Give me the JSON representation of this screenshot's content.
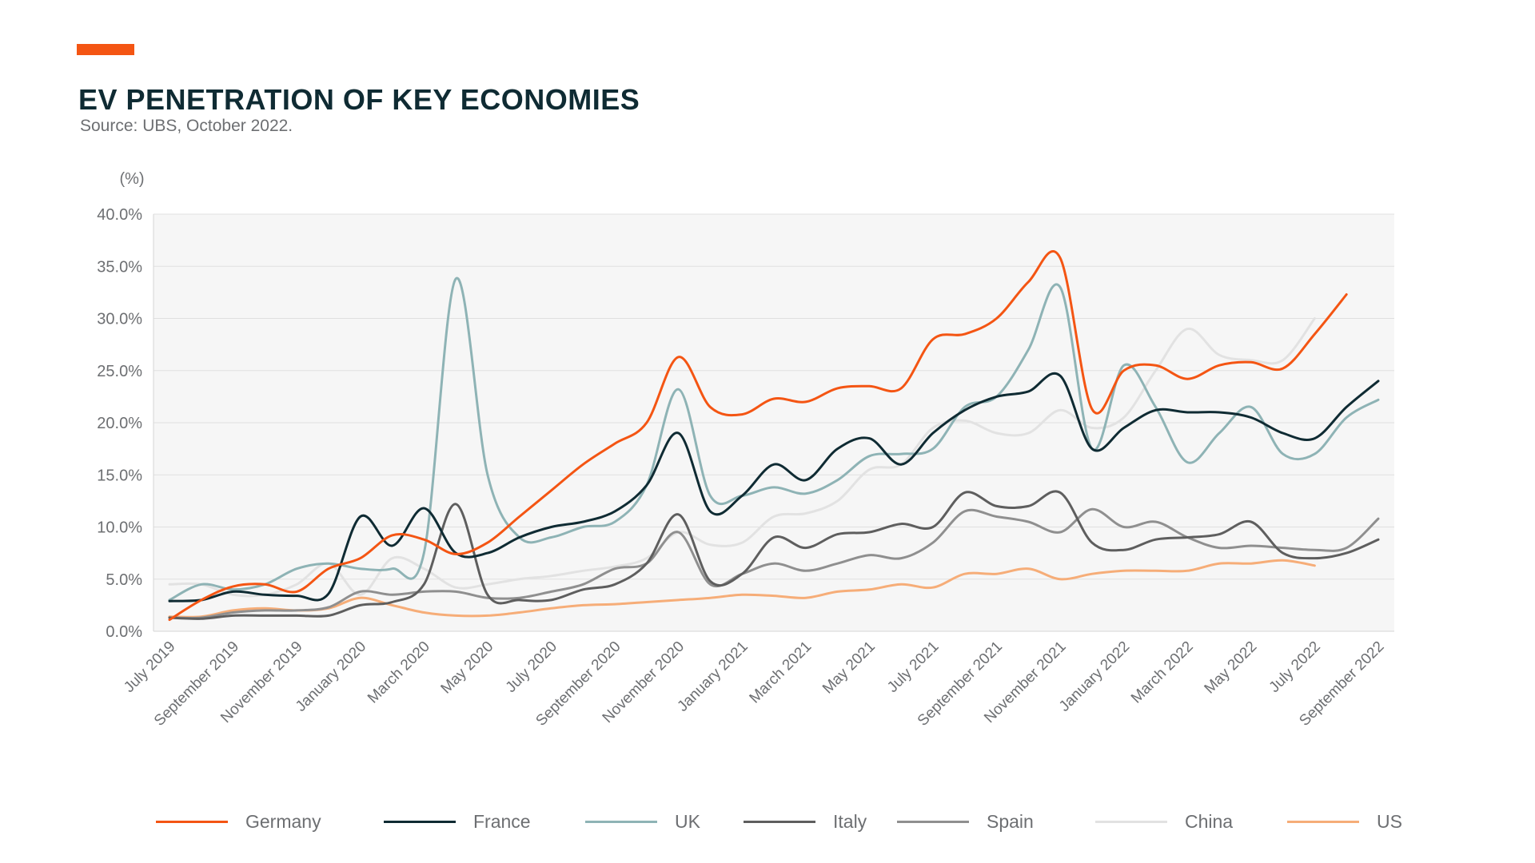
{
  "header": {
    "title": "EV PENETRATION OF KEY ECONOMIES",
    "source": "Source: UBS, October 2022."
  },
  "chart_data": {
    "type": "line",
    "title": "EV PENETRATION OF KEY ECONOMIES",
    "subtitle": "Source: UBS, October 2022.",
    "ylabel": "(%)",
    "xlabel": "",
    "ylim": [
      0,
      40
    ],
    "y_ticks": [
      "0.0%",
      "5.0%",
      "10.0%",
      "15.0%",
      "20.0%",
      "25.0%",
      "30.0%",
      "35.0%",
      "40.0%"
    ],
    "x_tick_labels": [
      "July 2019",
      "September 2019",
      "November 2019",
      "January 2020",
      "March 2020",
      "May 2020",
      "July 2020",
      "September 2020",
      "November 2020",
      "January 2021",
      "March 2021",
      "May 2021",
      "July 2021",
      "September 2021",
      "November 2021",
      "January 2022",
      "March 2022",
      "May 2022",
      "July 2022",
      "September 2022"
    ],
    "grid": "horizontal",
    "legend_position": "bottom",
    "x": [
      "Jul 2019",
      "Aug 2019",
      "Sep 2019",
      "Oct 2019",
      "Nov 2019",
      "Dec 2019",
      "Jan 2020",
      "Feb 2020",
      "Mar 2020",
      "Apr 2020",
      "May 2020",
      "Jun 2020",
      "Jul 2020",
      "Aug 2020",
      "Sep 2020",
      "Oct 2020",
      "Nov 2020",
      "Dec 2020",
      "Jan 2021",
      "Feb 2021",
      "Mar 2021",
      "Apr 2021",
      "May 2021",
      "Jun 2021",
      "Jul 2021",
      "Aug 2021",
      "Sep 2021",
      "Oct 2021",
      "Nov 2021",
      "Dec 2021",
      "Jan 2022",
      "Feb 2022",
      "Mar 2022",
      "Apr 2022",
      "May 2022",
      "Jun 2022",
      "Jul 2022",
      "Aug 2022",
      "Sep 2022"
    ],
    "series": [
      {
        "name": "Germany",
        "color": "#f45513",
        "values": [
          1.1,
          3.0,
          4.3,
          4.5,
          3.8,
          6.0,
          7.0,
          9.2,
          8.8,
          7.4,
          8.5,
          11.0,
          13.5,
          16.0,
          18.0,
          20.0,
          26.3,
          21.5,
          20.8,
          22.3,
          22.0,
          23.3,
          23.5,
          23.3,
          28.0,
          28.5,
          30.0,
          33.5,
          35.8,
          21.3,
          25.0,
          25.5,
          24.2,
          25.5,
          25.8,
          25.2,
          28.5,
          32.3,
          null
        ]
      },
      {
        "name": "France",
        "color": "#0f2b33",
        "values": [
          2.9,
          3.0,
          3.8,
          3.5,
          3.4,
          3.6,
          11.0,
          8.2,
          11.8,
          7.5,
          7.5,
          9.0,
          10.0,
          10.5,
          11.5,
          14.0,
          19.0,
          11.5,
          13.0,
          16.0,
          14.5,
          17.5,
          18.5,
          16.0,
          19.0,
          21.2,
          22.5,
          23.0,
          24.5,
          17.5,
          19.5,
          21.2,
          21.0,
          21.0,
          20.5,
          19.0,
          18.5,
          21.5,
          24.0
        ]
      },
      {
        "name": "UK",
        "color": "#8eb3b5",
        "values": [
          3.0,
          4.5,
          4.0,
          4.5,
          6.0,
          6.5,
          6.0,
          6.0,
          7.5,
          33.8,
          15.0,
          9.0,
          9.0,
          10.0,
          10.5,
          14.0,
          23.2,
          13.0,
          13.0,
          13.8,
          13.2,
          14.5,
          16.8,
          17.0,
          17.5,
          21.5,
          22.5,
          27.0,
          33.0,
          17.5,
          25.5,
          21.5,
          16.2,
          19.0,
          21.5,
          17.0,
          17.0,
          20.5,
          22.2
        ]
      },
      {
        "name": "Italy",
        "color": "#5e5e5e",
        "values": [
          1.3,
          1.2,
          1.5,
          1.5,
          1.5,
          1.5,
          2.5,
          2.8,
          4.5,
          12.2,
          3.5,
          3.0,
          3.0,
          4.0,
          4.5,
          6.5,
          11.2,
          4.8,
          5.5,
          9.0,
          8.0,
          9.3,
          9.5,
          10.3,
          10.0,
          13.3,
          12.0,
          12.0,
          13.3,
          8.5,
          7.8,
          8.8,
          9.0,
          9.3,
          10.5,
          7.5,
          7.0,
          7.5,
          8.8
        ]
      },
      {
        "name": "Spain",
        "color": "#8f8f8f",
        "values": [
          1.3,
          1.3,
          1.8,
          2.0,
          2.0,
          2.3,
          3.8,
          3.5,
          3.8,
          3.8,
          3.2,
          3.2,
          3.8,
          4.5,
          6.0,
          6.5,
          9.5,
          4.5,
          5.5,
          6.5,
          5.8,
          6.5,
          7.3,
          7.0,
          8.5,
          11.5,
          11.0,
          10.5,
          9.5,
          11.7,
          10.0,
          10.5,
          9.0,
          8.0,
          8.2,
          8.0,
          7.8,
          8.0,
          10.8
        ]
      },
      {
        "name": "China",
        "color": "#e2e2e2",
        "values": [
          4.5,
          4.5,
          3.5,
          3.5,
          4.5,
          6.5,
          3.5,
          7.0,
          6.0,
          4.2,
          4.5,
          5.0,
          5.3,
          5.8,
          6.2,
          7.0,
          9.5,
          8.3,
          8.5,
          11.0,
          11.3,
          12.5,
          15.5,
          16.0,
          19.5,
          20.2,
          19.0,
          19.0,
          21.2,
          19.5,
          20.5,
          25.0,
          29.0,
          26.5,
          26.0,
          26.0,
          30.0,
          null,
          null
        ]
      },
      {
        "name": "US",
        "color": "#f6ad78",
        "values": [
          1.4,
          1.4,
          2.0,
          2.2,
          2.0,
          2.2,
          3.2,
          2.5,
          1.8,
          1.5,
          1.5,
          1.8,
          2.2,
          2.5,
          2.6,
          2.8,
          3.0,
          3.2,
          3.5,
          3.4,
          3.2,
          3.8,
          4.0,
          4.5,
          4.2,
          5.5,
          5.5,
          6.0,
          5.0,
          5.5,
          5.8,
          5.8,
          5.8,
          6.5,
          6.5,
          6.8,
          6.3,
          null,
          null
        ]
      }
    ]
  }
}
